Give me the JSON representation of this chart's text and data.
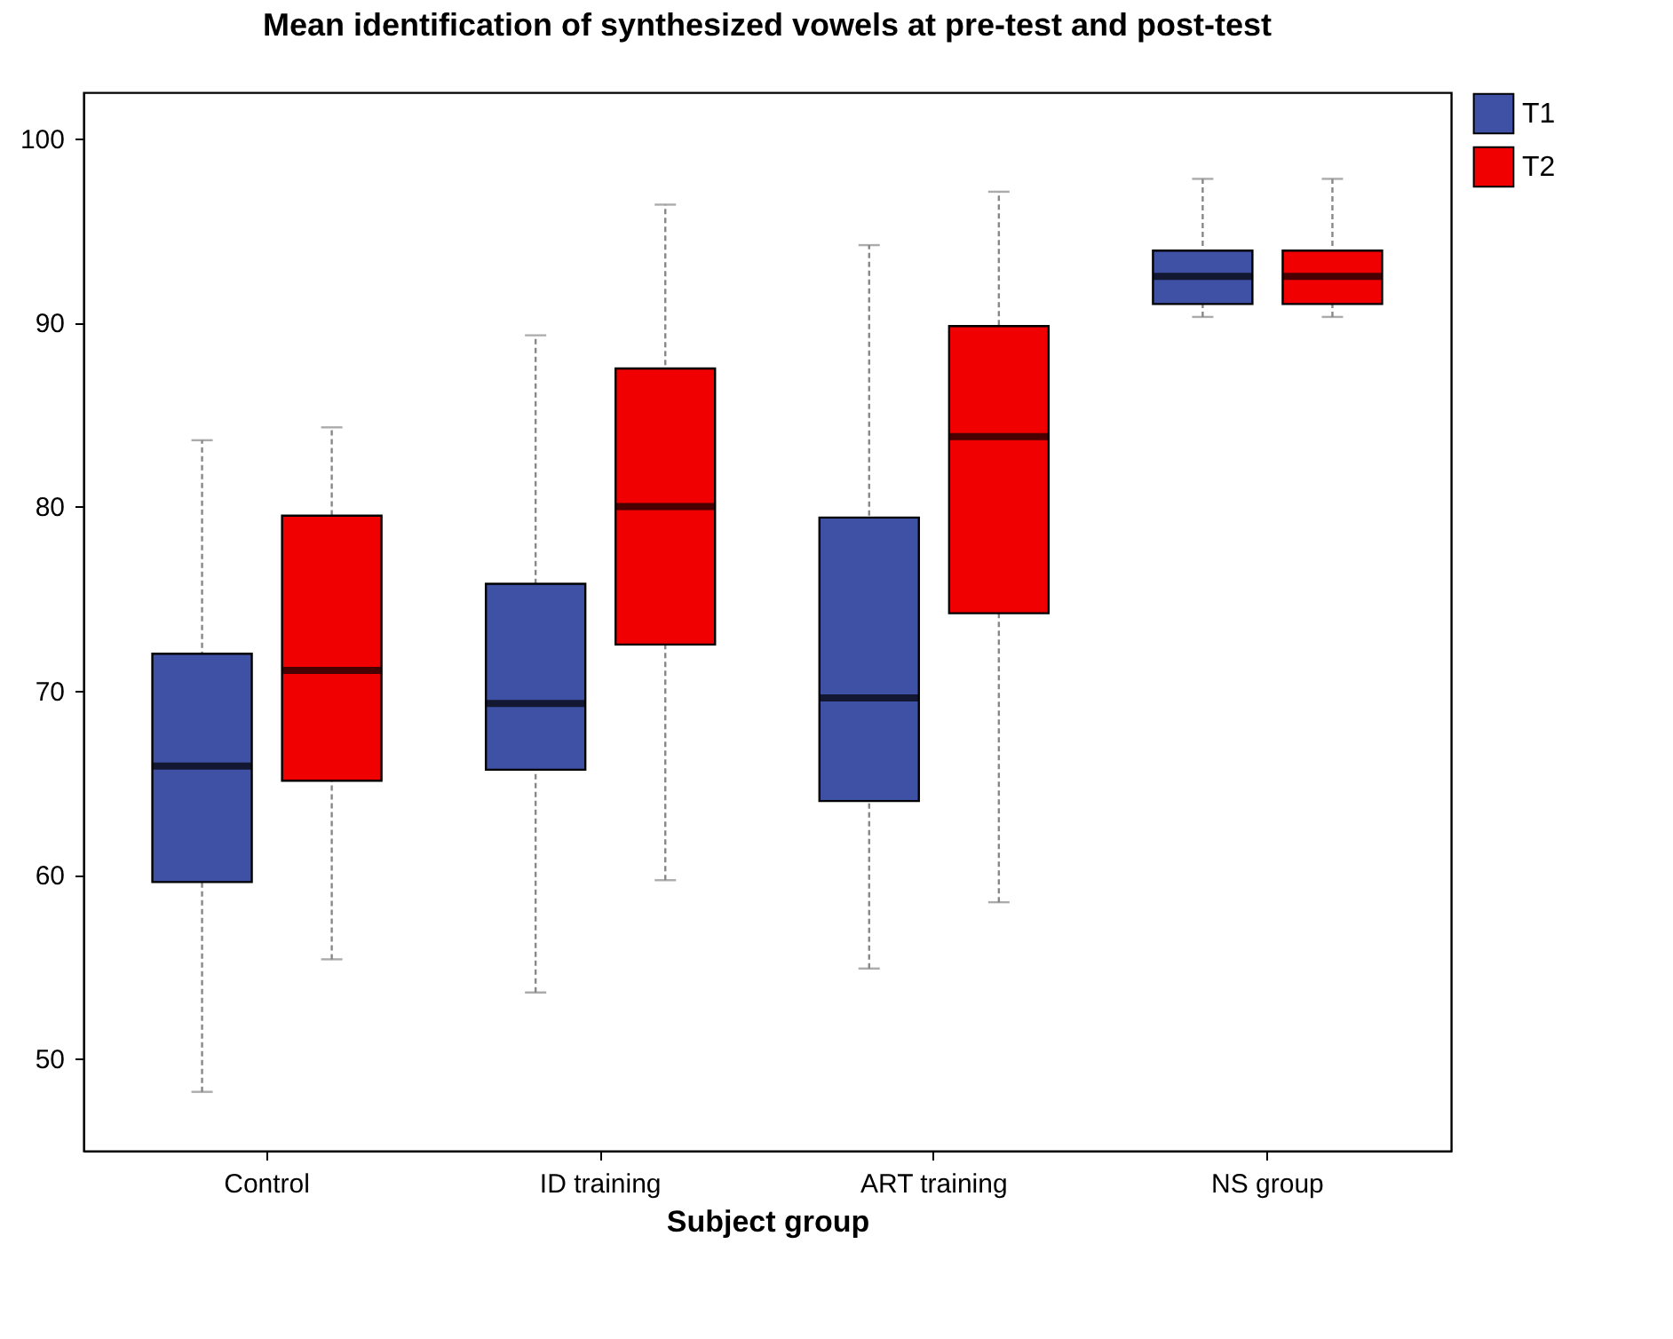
{
  "chart_data": {
    "type": "box",
    "title": "Mean identification of synthesized vowels at pre-test and post-test",
    "xlabel": "Subject group",
    "categories": [
      "Control",
      "ID training",
      "ART training",
      "NS group"
    ],
    "ylim": [
      45,
      102.5
    ],
    "yticks": [
      50,
      60,
      70,
      80,
      90,
      100
    ],
    "grid": false,
    "legend": "top right",
    "series": [
      {
        "name": "T1",
        "color": "#3f51a5",
        "boxes": [
          {
            "low": 48.2,
            "q1": 59.6,
            "median": 65.9,
            "q3": 72.0,
            "high": 83.6
          },
          {
            "low": 53.6,
            "q1": 65.7,
            "median": 69.3,
            "q3": 75.8,
            "high": 89.3
          },
          {
            "low": 54.9,
            "q1": 64.0,
            "median": 69.6,
            "q3": 79.4,
            "high": 94.2
          },
          {
            "low": 90.3,
            "q1": 91.0,
            "median": 92.5,
            "q3": 93.9,
            "high": 97.8
          }
        ]
      },
      {
        "name": "T2",
        "color": "#f00000",
        "boxes": [
          {
            "low": 55.4,
            "q1": 65.1,
            "median": 71.1,
            "q3": 79.5,
            "high": 84.3
          },
          {
            "low": 59.7,
            "q1": 72.5,
            "median": 80.0,
            "q3": 87.5,
            "high": 96.4
          },
          {
            "low": 58.5,
            "q1": 74.2,
            "median": 83.8,
            "q3": 89.8,
            "high": 97.1
          },
          {
            "low": 90.3,
            "q1": 91.0,
            "median": 92.5,
            "q3": 93.9,
            "high": 97.8
          }
        ]
      }
    ]
  }
}
